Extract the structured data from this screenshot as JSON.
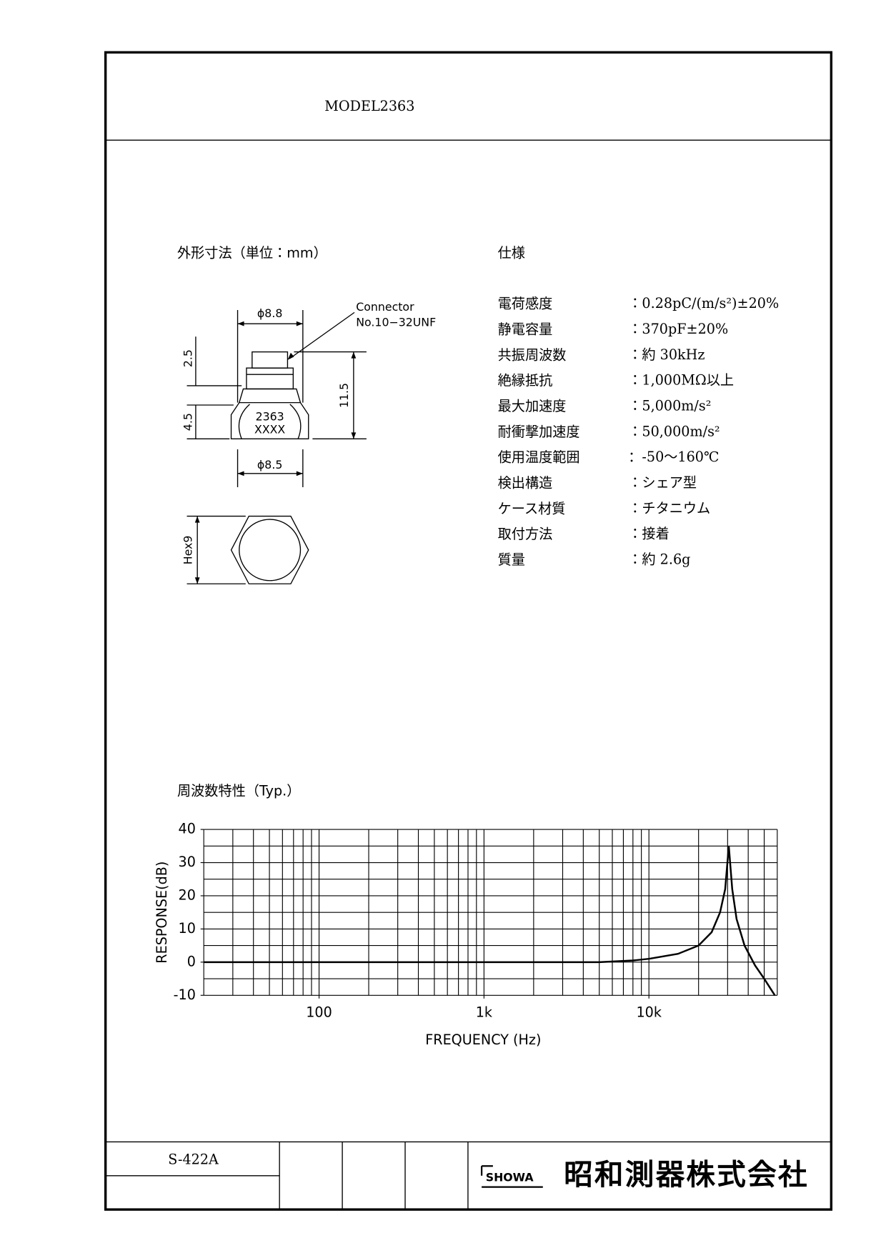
{
  "header": {
    "model": "MODEL2363"
  },
  "dimensions": {
    "title": "外形寸法（単位：mm）",
    "labels": {
      "dia_top": "ϕ8.8",
      "connector": "Connector",
      "thread": "No.10−32UNF",
      "h1": "2.5",
      "h2": "4.5",
      "total": "11.5",
      "marking1": "2363",
      "marking2": "XXXX",
      "dia_bottom": "ϕ8.5",
      "hex": "Hex9"
    }
  },
  "specs": {
    "title": "仕様",
    "rows": [
      {
        "label": "電荷感度",
        "value": "：0.28pC/(m/s²)±20%"
      },
      {
        "label": "静電容量",
        "value": "：370pF±20%"
      },
      {
        "label": "共振周波数",
        "value": "：約 30kHz"
      },
      {
        "label": "絶縁抵抗",
        "value": "：1,000MΩ以上"
      },
      {
        "label": "最大加速度",
        "value": "：5,000m/s²"
      },
      {
        "label": "耐衝撃加速度",
        "value": "：50,000m/s²"
      },
      {
        "label": "使用温度範囲",
        "value": "：-50〜160℃"
      },
      {
        "label": "検出構造",
        "value": "：シェア型"
      },
      {
        "label": "ケース材質",
        "value": "：チタニウム"
      },
      {
        "label": "取付方法",
        "value": "：接着"
      },
      {
        "label": "質量",
        "value": "：約 2.6g"
      }
    ]
  },
  "chart_data": {
    "type": "line",
    "title": "周波数特性（Typ.）",
    "x_label": "FREQUENCY (Hz)",
    "y_label": "RESPONSE(dB)",
    "xscale": "log",
    "xlim": [
      20,
      60000
    ],
    "ylim": [
      -10,
      40
    ],
    "xticks": [
      100,
      {
        "value": 1000,
        "label": "1k"
      },
      {
        "value": 10000,
        "label": "10k"
      }
    ],
    "yticks": [
      -10,
      0,
      10,
      20,
      30,
      40
    ],
    "grid": true,
    "xgrid": [
      20,
      30,
      40,
      50,
      60,
      70,
      80,
      90,
      100,
      200,
      300,
      400,
      500,
      600,
      700,
      800,
      900,
      1000,
      2000,
      3000,
      4000,
      5000,
      6000,
      7000,
      8000,
      9000,
      10000,
      20000,
      30000,
      40000,
      50000,
      60000
    ],
    "ygrid": [
      -10,
      -5,
      0,
      5,
      10,
      15,
      20,
      25,
      30,
      35,
      40
    ],
    "color": "#000000",
    "x": [
      20,
      5000,
      8000,
      10000,
      15000,
      20000,
      24000,
      27000,
      29000,
      30500,
      32000,
      34000,
      38000,
      44000,
      50000,
      58000
    ],
    "values": [
      0,
      0,
      0.5,
      1,
      2.5,
      5,
      9,
      15,
      22,
      35,
      22,
      13,
      5,
      -1,
      -5,
      -10
    ]
  },
  "footer": {
    "code": "S-422A",
    "logo": "SHOWA",
    "company": "昭和測器株式会社"
  }
}
